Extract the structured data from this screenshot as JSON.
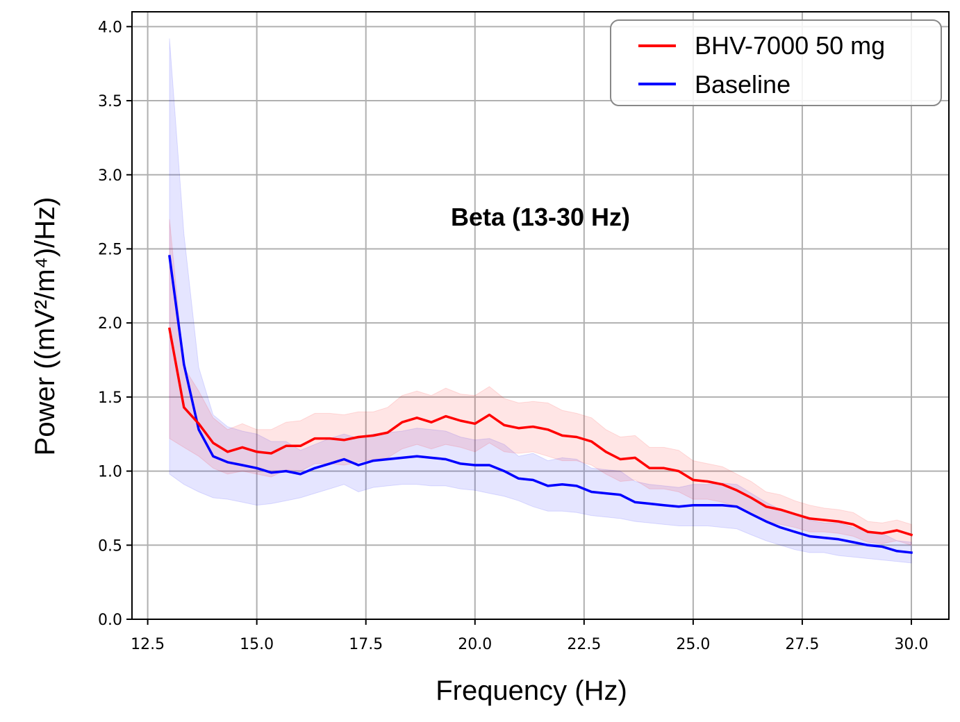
{
  "chart_data": {
    "type": "line",
    "annotation": "Beta (13-30 Hz)",
    "xlabel": "Frequency (Hz)",
    "ylabel": "Power ((mV²/m⁴)/Hz)",
    "xlim": [
      12.14,
      30.86
    ],
    "ylim": [
      0,
      4.1
    ],
    "xticks": [
      12.5,
      15.0,
      17.5,
      20.0,
      22.5,
      25.0,
      27.5,
      30.0
    ],
    "yticks": [
      0.0,
      0.5,
      1.0,
      1.5,
      2.0,
      2.5,
      3.0,
      3.5,
      4.0
    ],
    "grid": true,
    "legend_position": "top-right",
    "x": [
      13.0,
      13.33,
      13.67,
      14.0,
      14.33,
      14.67,
      15.0,
      15.33,
      15.67,
      16.0,
      16.33,
      16.67,
      17.0,
      17.33,
      17.67,
      18.0,
      18.33,
      18.67,
      19.0,
      19.33,
      19.67,
      20.0,
      20.33,
      20.67,
      21.0,
      21.33,
      21.67,
      22.0,
      22.33,
      22.67,
      23.0,
      23.33,
      23.67,
      24.0,
      24.33,
      24.67,
      25.0,
      25.33,
      25.67,
      26.0,
      26.33,
      26.67,
      27.0,
      27.33,
      27.67,
      28.0,
      28.33,
      28.67,
      29.0,
      29.33,
      29.67,
      30.0
    ],
    "series": [
      {
        "name": "BHV-7000 50 mg",
        "color": "#ff0000",
        "values": [
          1.96,
          1.43,
          1.32,
          1.19,
          1.13,
          1.16,
          1.13,
          1.12,
          1.17,
          1.17,
          1.22,
          1.22,
          1.21,
          1.23,
          1.24,
          1.26,
          1.33,
          1.36,
          1.33,
          1.37,
          1.34,
          1.32,
          1.38,
          1.31,
          1.29,
          1.3,
          1.28,
          1.24,
          1.23,
          1.2,
          1.13,
          1.08,
          1.09,
          1.02,
          1.02,
          1.0,
          0.94,
          0.93,
          0.91,
          0.87,
          0.82,
          0.76,
          0.74,
          0.71,
          0.68,
          0.67,
          0.66,
          0.64,
          0.59,
          0.58,
          0.6,
          0.57
        ],
        "lower": [
          1.22,
          1.16,
          1.1,
          1.02,
          0.98,
          1.0,
          0.98,
          0.96,
          1.01,
          1.0,
          1.05,
          1.05,
          1.04,
          1.06,
          1.08,
          1.09,
          1.15,
          1.18,
          1.15,
          1.18,
          1.16,
          1.13,
          1.19,
          1.13,
          1.12,
          1.13,
          1.1,
          1.07,
          1.07,
          1.04,
          0.98,
          0.93,
          0.94,
          0.88,
          0.88,
          0.86,
          0.81,
          0.81,
          0.79,
          0.76,
          0.71,
          0.66,
          0.64,
          0.62,
          0.59,
          0.59,
          0.58,
          0.56,
          0.52,
          0.51,
          0.53,
          0.5
        ],
        "upper": [
          2.7,
          1.7,
          1.54,
          1.36,
          1.28,
          1.32,
          1.28,
          1.28,
          1.33,
          1.34,
          1.39,
          1.39,
          1.38,
          1.4,
          1.4,
          1.43,
          1.51,
          1.54,
          1.51,
          1.56,
          1.52,
          1.51,
          1.57,
          1.49,
          1.46,
          1.47,
          1.46,
          1.41,
          1.39,
          1.36,
          1.28,
          1.23,
          1.24,
          1.16,
          1.16,
          1.14,
          1.07,
          1.05,
          1.03,
          0.98,
          0.93,
          0.86,
          0.84,
          0.8,
          0.77,
          0.75,
          0.74,
          0.72,
          0.66,
          0.65,
          0.67,
          0.64
        ]
      },
      {
        "name": "Baseline",
        "color": "#0000ff",
        "values": [
          2.45,
          1.72,
          1.28,
          1.1,
          1.06,
          1.04,
          1.02,
          0.99,
          1.0,
          0.98,
          1.02,
          1.05,
          1.08,
          1.04,
          1.07,
          1.08,
          1.09,
          1.1,
          1.09,
          1.08,
          1.05,
          1.04,
          1.04,
          1.0,
          0.95,
          0.94,
          0.9,
          0.91,
          0.9,
          0.86,
          0.85,
          0.84,
          0.79,
          0.78,
          0.77,
          0.76,
          0.77,
          0.77,
          0.77,
          0.76,
          0.71,
          0.66,
          0.62,
          0.59,
          0.56,
          0.55,
          0.54,
          0.52,
          0.5,
          0.49,
          0.46,
          0.45
        ],
        "lower": [
          0.98,
          0.91,
          0.86,
          0.82,
          0.81,
          0.79,
          0.77,
          0.78,
          0.8,
          0.82,
          0.85,
          0.88,
          0.91,
          0.86,
          0.89,
          0.9,
          0.91,
          0.91,
          0.9,
          0.9,
          0.88,
          0.87,
          0.85,
          0.83,
          0.8,
          0.76,
          0.73,
          0.73,
          0.72,
          0.7,
          0.69,
          0.68,
          0.66,
          0.65,
          0.64,
          0.63,
          0.63,
          0.63,
          0.62,
          0.61,
          0.57,
          0.53,
          0.5,
          0.47,
          0.45,
          0.45,
          0.43,
          0.42,
          0.41,
          0.4,
          0.39,
          0.38
        ],
        "upper": [
          3.92,
          2.6,
          1.7,
          1.38,
          1.3,
          1.27,
          1.25,
          1.2,
          1.2,
          1.14,
          1.18,
          1.22,
          1.25,
          1.22,
          1.25,
          1.26,
          1.27,
          1.29,
          1.28,
          1.27,
          1.23,
          1.21,
          1.22,
          1.18,
          1.1,
          1.12,
          1.07,
          1.09,
          1.08,
          1.02,
          1.01,
          1.0,
          0.93,
          0.91,
          0.9,
          0.89,
          0.91,
          0.91,
          0.92,
          0.91,
          0.85,
          0.79,
          0.74,
          0.71,
          0.67,
          0.65,
          0.65,
          0.62,
          0.59,
          0.58,
          0.53,
          0.52
        ]
      }
    ]
  }
}
